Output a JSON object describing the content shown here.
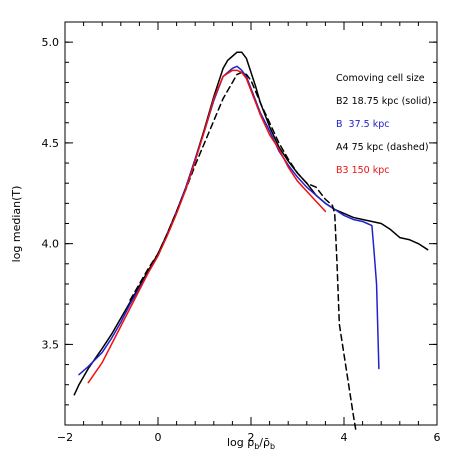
{
  "chart_data": {
    "type": "line",
    "title": "",
    "xlabel": "log ρb/ρ̄b",
    "xlabel_parts": {
      "main": "log ρ",
      "sub1": "b",
      "slash": "/",
      "rho_bar": "ρ̄",
      "sub2": "b"
    },
    "ylabel": "log median(T)",
    "xlim": [
      -2,
      6
    ],
    "ylim": [
      3.1,
      5.1
    ],
    "xticks": [
      -2,
      0,
      2,
      4,
      6
    ],
    "xtick_labels": [
      "−2",
      "0",
      "2",
      "4",
      "6"
    ],
    "yticks": [
      3.5,
      4.0,
      4.5,
      5.0
    ],
    "ytick_labels": [
      "3.5",
      "4.0",
      "4.5",
      "5.0"
    ],
    "grid": false,
    "legend": {
      "title": "Comoving cell size",
      "placement": "top-right",
      "entries": [
        {
          "text": "B2 18.75 kpc (solid)",
          "color": "#000000"
        },
        {
          "text": "B  37.5 kpc",
          "color": "#2222cc"
        },
        {
          "text": "A4 75 kpc (dashed)",
          "color": "#000000"
        },
        {
          "text": "B3 150 kpc",
          "color": "#ee1111"
        }
      ]
    },
    "series": [
      {
        "color": "#000000",
        "style": "solid",
        "x": [
          -1.8,
          -1.7,
          -1.5,
          -1.2,
          -1.0,
          -0.8,
          -0.6,
          -0.4,
          -0.2,
          0.0,
          0.2,
          0.4,
          0.6,
          0.8,
          1.0,
          1.2,
          1.4,
          1.5,
          1.6,
          1.7,
          1.8,
          1.9,
          2.0,
          2.1,
          2.2,
          2.4,
          2.6,
          2.8,
          3.0,
          3.2,
          3.4,
          3.6,
          3.8,
          4.0,
          4.2,
          4.4,
          4.6,
          4.8,
          5.0,
          5.2,
          5.4,
          5.6,
          5.8
        ],
        "y": [
          3.25,
          3.3,
          3.38,
          3.48,
          3.55,
          3.63,
          3.71,
          3.79,
          3.87,
          3.95,
          4.05,
          4.16,
          4.28,
          4.42,
          4.57,
          4.73,
          4.87,
          4.91,
          4.93,
          4.95,
          4.95,
          4.92,
          4.85,
          4.78,
          4.7,
          4.58,
          4.48,
          4.41,
          4.35,
          4.3,
          4.24,
          4.2,
          4.17,
          4.15,
          4.13,
          4.12,
          4.11,
          4.1,
          4.07,
          4.03,
          4.02,
          4.0,
          3.97
        ]
      },
      {
        "color": "#2222cc",
        "style": "solid",
        "x": [
          -1.7,
          -1.5,
          -1.2,
          -1.0,
          -0.8,
          -0.6,
          -0.4,
          -0.2,
          0.0,
          0.2,
          0.4,
          0.6,
          0.8,
          1.0,
          1.2,
          1.4,
          1.6,
          1.7,
          1.8,
          1.9,
          2.0,
          2.2,
          2.4,
          2.6,
          2.8,
          3.0,
          3.2,
          3.4,
          3.6,
          3.8,
          4.0,
          4.2,
          4.4,
          4.5,
          4.6,
          4.65,
          4.7,
          4.75
        ],
        "y": [
          3.35,
          3.39,
          3.46,
          3.53,
          3.61,
          3.7,
          3.78,
          3.86,
          3.94,
          4.05,
          4.16,
          4.28,
          4.42,
          4.56,
          4.71,
          4.83,
          4.87,
          4.88,
          4.86,
          4.83,
          4.77,
          4.65,
          4.56,
          4.46,
          4.39,
          4.33,
          4.28,
          4.24,
          4.2,
          4.17,
          4.14,
          4.12,
          4.11,
          4.1,
          4.09,
          3.95,
          3.8,
          3.38
        ]
      },
      {
        "color": "#000000",
        "style": "dashed",
        "x": [
          -0.6,
          -0.4,
          -0.2,
          0.0,
          0.2,
          0.4,
          0.6,
          0.8,
          1.0,
          1.2,
          1.4,
          1.6,
          1.7,
          1.8,
          1.9,
          2.0,
          2.2,
          2.4,
          2.6,
          2.8,
          3.0,
          3.2,
          3.4,
          3.6,
          3.75,
          3.8,
          3.85,
          3.9,
          4.0,
          4.1,
          4.2,
          4.25
        ],
        "y": [
          3.72,
          3.8,
          3.88,
          3.95,
          4.05,
          4.16,
          4.27,
          4.39,
          4.5,
          4.61,
          4.72,
          4.8,
          4.84,
          4.85,
          4.84,
          4.81,
          4.7,
          4.6,
          4.5,
          4.42,
          4.35,
          4.3,
          4.28,
          4.22,
          4.19,
          4.15,
          3.9,
          3.6,
          3.45,
          3.3,
          3.15,
          3.08
        ]
      },
      {
        "color": "#ee1111",
        "style": "solid",
        "x": [
          -1.5,
          -1.2,
          -1.0,
          -0.8,
          -0.6,
          -0.4,
          -0.2,
          0.0,
          0.2,
          0.4,
          0.6,
          0.8,
          1.0,
          1.2,
          1.4,
          1.6,
          1.7,
          1.8,
          1.9,
          2.0,
          2.2,
          2.4,
          2.6,
          2.8,
          3.0,
          3.2,
          3.4,
          3.6
        ],
        "y": [
          3.31,
          3.41,
          3.5,
          3.59,
          3.68,
          3.77,
          3.86,
          3.94,
          4.04,
          4.15,
          4.27,
          4.41,
          4.56,
          4.72,
          4.83,
          4.86,
          4.86,
          4.85,
          4.82,
          4.76,
          4.64,
          4.54,
          4.47,
          4.38,
          4.31,
          4.26,
          4.21,
          4.16
        ]
      }
    ]
  }
}
